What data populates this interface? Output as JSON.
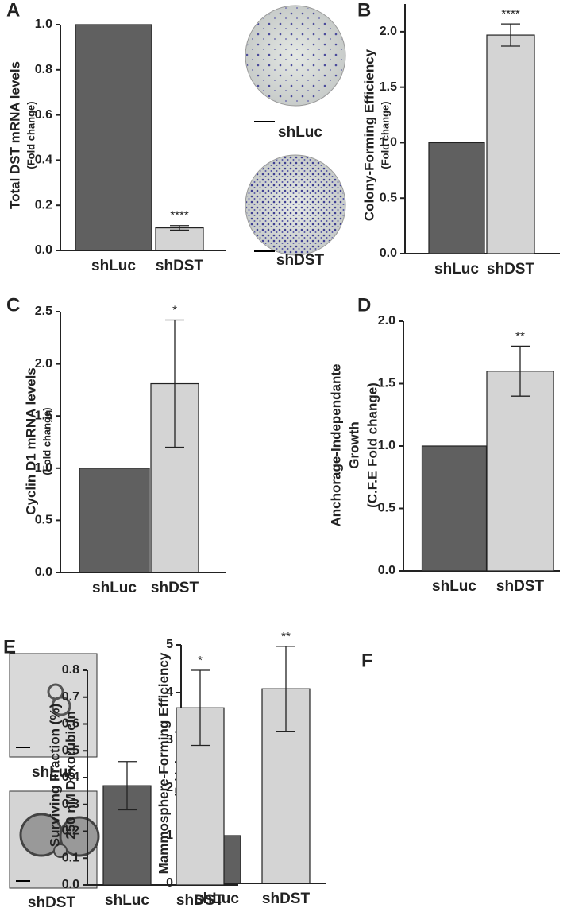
{
  "panel_labels": [
    "A",
    "B",
    "C",
    "D",
    "E",
    "F"
  ],
  "image_labels": {
    "B": [
      "shLuc",
      "shDST"
    ],
    "E": [
      "shLuc",
      "shDST"
    ]
  },
  "chart_data": [
    {
      "type": "bar",
      "ylabel": [
        "Total DST mRNA levels",
        "(Fold change)"
      ],
      "categories": [
        "shLuc",
        "shDST"
      ],
      "values": [
        1.0,
        0.1
      ],
      "errors": [
        null,
        0.01
      ],
      "annotations": [
        null,
        "****"
      ],
      "colors": [
        "#606060",
        "#d4d4d4"
      ],
      "ylim": [
        0,
        1.0
      ],
      "yticks": [
        {
          "value": 0,
          "label": "0.0"
        },
        0.2,
        0.4,
        0.6,
        0.8,
        {
          "value": 1,
          "label": "1.0"
        }
      ]
    },
    {
      "type": "bar",
      "ylabel": [
        "Colony-Forming Efficiency",
        "(Fold change)"
      ],
      "categories": [
        "shLuc",
        "shDST"
      ],
      "values": [
        1.0,
        1.97
      ],
      "errors": [
        null,
        0.1
      ],
      "annotations": [
        null,
        "****"
      ],
      "colors": [
        "#606060",
        "#d4d4d4"
      ],
      "ylim": [
        0,
        2.25
      ],
      "yticks": [
        {
          "value": 0,
          "label": "0.0"
        },
        0.5,
        {
          "value": 1,
          "label": "1.0"
        },
        1.5,
        {
          "value": 2,
          "label": "2.0"
        }
      ]
    },
    {
      "type": "bar",
      "ylabel": [
        "Cyclin D1 mRNA levels",
        "(Fold change)"
      ],
      "categories": [
        "shLuc",
        "shDST"
      ],
      "values": [
        1.0,
        1.81
      ],
      "errors": [
        null,
        0.61
      ],
      "annotations": [
        null,
        "*"
      ],
      "colors": [
        "#606060",
        "#d4d4d4"
      ],
      "ylim": [
        0,
        2.5
      ],
      "yticks": [
        {
          "value": 0,
          "label": "0.0"
        },
        0.5,
        {
          "value": 1,
          "label": "1.0"
        },
        1.5,
        {
          "value": 2,
          "label": "2.0"
        },
        2.5
      ]
    },
    {
      "type": "bar",
      "ylabel": [
        "Anchorage-Independante",
        "Growth",
        "(C.F.E Fold change)"
      ],
      "categories": [
        "shLuc",
        "shDST"
      ],
      "values": [
        1.0,
        1.6
      ],
      "errors": [
        null,
        0.2
      ],
      "annotations": [
        null,
        "**"
      ],
      "colors": [
        "#606060",
        "#d4d4d4"
      ],
      "ylim": [
        0,
        2.0
      ],
      "yticks": [
        {
          "value": 0,
          "label": "0.0"
        },
        0.5,
        {
          "value": 1,
          "label": "1.0"
        },
        1.5,
        {
          "value": 2,
          "label": "2.0"
        }
      ]
    },
    {
      "type": "bar",
      "ylabel": [
        "Mammosphere-Forming Efficiency",
        "(Fold change)"
      ],
      "categories": [
        "shLuc",
        "shDST"
      ],
      "values": [
        1,
        4.08
      ],
      "errors": [
        null,
        0.89
      ],
      "annotations": [
        null,
        "**"
      ],
      "colors": [
        "#606060",
        "#d4d4d4"
      ],
      "ylim": [
        0,
        5
      ],
      "yticks": [
        0,
        1,
        2,
        3,
        4,
        5
      ]
    },
    {
      "type": "bar",
      "ylabel": [
        "Surviving Fraction (%)",
        "250 nM Doxorubicin"
      ],
      "categories": [
        "shLuc",
        "shDST"
      ],
      "values": [
        0.37,
        0.66
      ],
      "errors": [
        0.09,
        0.14
      ],
      "annotations": [
        null,
        "*"
      ],
      "colors": [
        "#606060",
        "#d4d4d4"
      ],
      "ylim": [
        0,
        0.8
      ],
      "yticks": [
        {
          "value": 0,
          "label": "0.0"
        },
        0.1,
        0.2,
        0.3,
        0.4,
        0.5,
        0.6,
        0.7,
        0.8
      ]
    }
  ]
}
